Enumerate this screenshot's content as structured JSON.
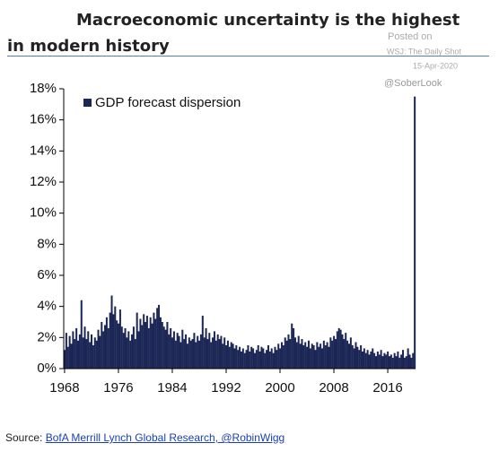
{
  "chart_data": {
    "type": "bar",
    "title": "Macroeconomic uncertainty is the highest in modern history",
    "annotations": [
      "Posted on",
      "WSJ: The Daily Shot",
      "15-Apr-2020",
      "@SoberLook"
    ],
    "source_label": "Source:",
    "source_link": "BofA Merrill Lynch Global Research, @RobinWigg",
    "categories": [
      "1968",
      null,
      null,
      null,
      null,
      null,
      null,
      null,
      null,
      null,
      null,
      null,
      null,
      null,
      null,
      null,
      null,
      null,
      null,
      null,
      null,
      null,
      null,
      null,
      null,
      null,
      null,
      null,
      null,
      null,
      null,
      null,
      "1976",
      null,
      null,
      null,
      null,
      null,
      null,
      null,
      null,
      null,
      null,
      null,
      null,
      null,
      null,
      null,
      null,
      null,
      null,
      null,
      null,
      null,
      null,
      null,
      null,
      null,
      null,
      null,
      null,
      null,
      null,
      null,
      "1984",
      null,
      null,
      null,
      null,
      null,
      null,
      null,
      null,
      null,
      null,
      null,
      null,
      null,
      null,
      null,
      null,
      null,
      null,
      null,
      null,
      null,
      null,
      null,
      null,
      null,
      null,
      null,
      null,
      null,
      null,
      null,
      "1992",
      null,
      null,
      null,
      null,
      null,
      null,
      null,
      null,
      null,
      null,
      null,
      null,
      null,
      null,
      null,
      null,
      null,
      null,
      null,
      null,
      null,
      null,
      null,
      null,
      null,
      null,
      null,
      null,
      null,
      null,
      null,
      "2000",
      null,
      null,
      null,
      null,
      null,
      null,
      null,
      null,
      null,
      null,
      null,
      null,
      null,
      null,
      null,
      null,
      null,
      null,
      null,
      null,
      null,
      null,
      null,
      null,
      null,
      null,
      null,
      null,
      null,
      null,
      null,
      "2008",
      null,
      null,
      null,
      null,
      null,
      null,
      null,
      null,
      null,
      null,
      null,
      null,
      null,
      null,
      null,
      null,
      null,
      null,
      null,
      null,
      null,
      null,
      null,
      null,
      null,
      null,
      null,
      null,
      null,
      null,
      null,
      "2016",
      null,
      null,
      null,
      null,
      null,
      null,
      null,
      null,
      null,
      null,
      null,
      null,
      null,
      null,
      null,
      null
    ],
    "series": [
      {
        "name": "GDP forecast dispersion",
        "color": "#1c2756",
        "values": [
          1.2,
          2.3,
          1.4,
          2.1,
          1.6,
          2.4,
          1.9,
          2.6,
          1.8,
          2.2,
          4.4,
          2.0,
          2.7,
          1.9,
          2.4,
          1.7,
          2.2,
          1.5,
          2.0,
          1.8,
          2.5,
          2.1,
          3.0,
          2.4,
          2.8,
          3.3,
          2.6,
          3.6,
          4.7,
          3.5,
          4.0,
          3.1,
          2.9,
          3.8,
          2.7,
          2.3,
          2.6,
          2.0,
          2.4,
          1.8,
          2.2,
          2.7,
          1.9,
          3.6,
          2.4,
          3.2,
          2.8,
          3.5,
          3.0,
          3.4,
          2.6,
          3.3,
          2.9,
          3.6,
          3.2,
          3.9,
          4.1,
          3.3,
          3.0,
          2.7,
          2.5,
          3.0,
          2.2,
          2.6,
          2.0,
          2.4,
          1.8,
          2.3,
          2.1,
          1.7,
          2.5,
          1.9,
          2.2,
          1.6,
          2.0,
          1.8,
          1.9,
          2.3,
          1.7,
          2.1,
          1.8,
          2.2,
          3.4,
          2.0,
          2.6,
          1.9,
          2.3,
          1.7,
          2.0,
          2.4,
          1.8,
          2.2,
          1.9,
          2.1,
          1.6,
          2.0,
          1.5,
          1.8,
          1.4,
          1.7,
          1.6,
          1.3,
          1.5,
          1.2,
          1.4,
          1.1,
          1.3,
          1.0,
          1.2,
          1.5,
          1.1,
          1.4,
          1.3,
          1.0,
          1.2,
          1.5,
          1.1,
          1.4,
          1.3,
          1.0,
          1.2,
          1.5,
          1.1,
          1.3,
          1.0,
          1.4,
          1.2,
          1.6,
          1.3,
          1.7,
          1.5,
          2.0,
          1.8,
          2.2,
          1.9,
          2.9,
          2.6,
          2.0,
          1.7,
          2.1,
          1.6,
          1.9,
          1.5,
          1.7,
          1.4,
          1.8,
          1.3,
          1.6,
          1.5,
          1.2,
          1.7,
          1.4,
          1.6,
          1.3,
          1.8,
          1.5,
          1.7,
          1.4,
          2.0,
          1.8,
          2.1,
          1.9,
          2.4,
          2.6,
          2.5,
          2.2,
          1.9,
          2.3,
          1.8,
          1.6,
          2.0,
          1.5,
          1.3,
          1.7,
          1.4,
          1.2,
          1.5,
          1.1,
          1.3,
          1.0,
          1.2,
          0.9,
          1.1,
          1.3,
          1.0,
          0.8,
          1.1,
          0.9,
          1.2,
          0.8,
          1.0,
          0.9,
          1.1,
          0.8,
          0.9,
          0.7,
          1.0,
          0.8,
          1.1,
          0.7,
          0.9,
          1.2,
          0.7,
          0.8,
          1.3,
          0.9,
          0.7,
          1.0,
          17.5
        ]
      }
    ],
    "ylim": [
      0,
      18
    ],
    "yticks": [
      {
        "value": 0,
        "label": "0%"
      },
      {
        "value": 2,
        "label": "2%"
      },
      {
        "value": 4,
        "label": "4%"
      },
      {
        "value": 6,
        "label": "6%"
      },
      {
        "value": 8,
        "label": "8%"
      },
      {
        "value": 10,
        "label": "10%"
      },
      {
        "value": 12,
        "label": "12%"
      },
      {
        "value": 14,
        "label": "14%"
      },
      {
        "value": 16,
        "label": "16%"
      },
      {
        "value": 18,
        "label": "18%"
      }
    ],
    "grid": false
  }
}
